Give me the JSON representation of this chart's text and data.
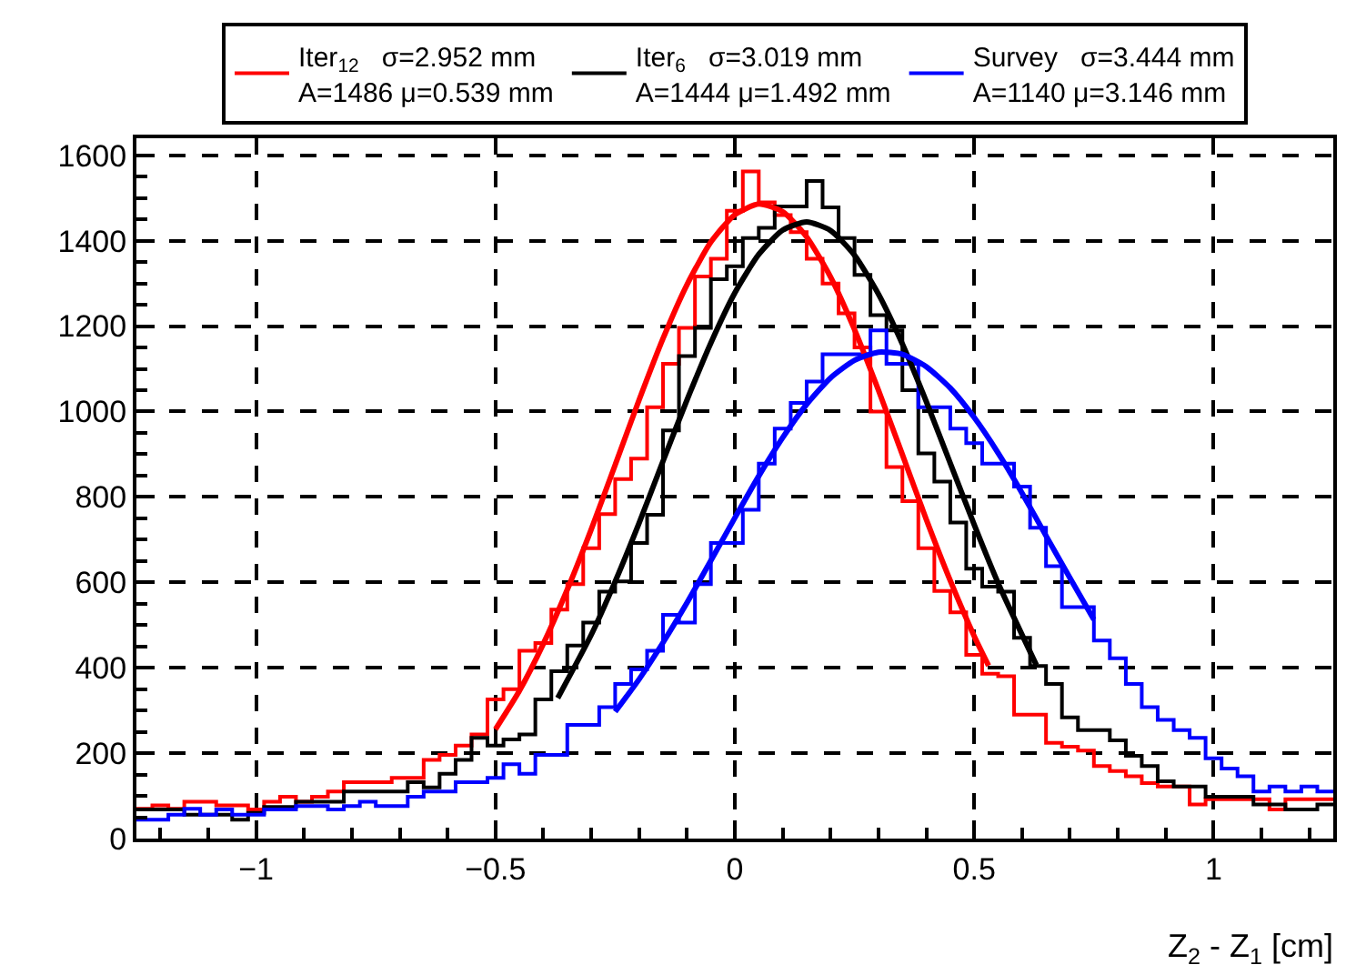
{
  "chart_data": {
    "type": "histogram",
    "xlabel": "Z$_{2}$ - Z$_{1}$ [cm]",
    "bins": [
      -1.25,
      -1.2167,
      -1.1833,
      -1.15,
      -1.1167,
      -1.0833,
      -1.05,
      -1.0167,
      -0.9833,
      -0.95,
      -0.9167,
      -0.8833,
      -0.85,
      -0.8167,
      -0.7833,
      -0.75,
      -0.7167,
      -0.6833,
      -0.65,
      -0.6167,
      -0.5833,
      -0.55,
      -0.5167,
      -0.4833,
      -0.45,
      -0.4167,
      -0.3833,
      -0.35,
      -0.3167,
      -0.2833,
      -0.25,
      -0.2167,
      -0.1833,
      -0.15,
      -0.1167,
      -0.0833,
      -0.05,
      -0.0167,
      0.0167,
      0.05,
      0.0833,
      0.1167,
      0.15,
      0.1833,
      0.2167,
      0.25,
      0.2833,
      0.3167,
      0.35,
      0.3833,
      0.4167,
      0.45,
      0.4833,
      0.5167,
      0.55,
      0.5833,
      0.6167,
      0.65,
      0.6833,
      0.7167,
      0.75,
      0.7833,
      0.8167,
      0.85,
      0.8833,
      0.9167,
      0.95,
      0.9833,
      1.0167,
      1.05,
      1.0833,
      1.1167,
      1.15,
      1.1833,
      1.2167,
      1.25
    ],
    "series": [
      {
        "name": "Iter$_{12}$   σ=2.952 mm",
        "color": "#ff0000",
        "values": [
          70,
          78,
          70,
          86,
          86,
          78,
          78,
          68,
          86,
          98,
          86,
          98,
          110,
          132,
          132,
          132,
          142,
          142,
          184,
          196,
          218,
          244,
          326,
          350,
          440,
          458,
          536,
          596,
          680,
          760,
          842,
          890,
          1010,
          1112,
          1196,
          1316,
          1358,
          1470,
          1562,
          1490,
          1460,
          1420,
          1358,
          1300,
          1230,
          1150,
          1000,
          870,
          790,
          680,
          580,
          530,
          430,
          386,
          380,
          290,
          290,
          224,
          215,
          206,
          170,
          158,
          146,
          130,
          122,
          122,
          80,
          92,
          92,
          92,
          92,
          68,
          92,
          92,
          92
        ]
      },
      {
        "name": "Iter$_{6}$   σ=3.019 mm",
        "color": "#000000",
        "values": [
          68,
          68,
          68,
          56,
          56,
          56,
          44,
          60,
          74,
          74,
          86,
          86,
          86,
          110,
          110,
          110,
          110,
          132,
          120,
          152,
          184,
          236,
          218,
          232,
          244,
          326,
          392,
          452,
          506,
          578,
          602,
          692,
          758,
          956,
          1130,
          1196,
          1310,
          1340,
          1406,
          1430,
          1480,
          1480,
          1540,
          1478,
          1406,
          1320,
          1226,
          1190,
          1050,
          902,
          836,
          740,
          632,
          590,
          578,
          470,
          404,
          362,
          284,
          254,
          254,
          230,
          194,
          170,
          134,
          122,
          122,
          98,
          98,
          98,
          80,
          80,
          68,
          68,
          80
        ]
      },
      {
        "name": "Survey   σ=3.444 mm",
        "color": "#0000ff",
        "values": [
          44,
          44,
          56,
          70,
          56,
          68,
          56,
          56,
          68,
          68,
          76,
          76,
          68,
          76,
          86,
          76,
          76,
          98,
          110,
          110,
          132,
          132,
          142,
          174,
          152,
          196,
          196,
          266,
          266,
          308,
          362,
          396,
          440,
          524,
          506,
          596,
          692,
          692,
          770,
          878,
          960,
          1020,
          1070,
          1134,
          1134,
          1134,
          1190,
          1112,
          1112,
          1010,
          1010,
          960,
          926,
          878,
          878,
          824,
          728,
          638,
          542,
          542,
          464,
          422,
          362,
          308,
          278,
          254,
          236,
          188,
          164,
          146,
          110,
          122,
          110,
          122,
          110
        ]
      },
      {
        "type": "line",
        "color": "#ff0000",
        "x": [
          -0.5,
          -0.45,
          -0.4,
          -0.35,
          -0.3,
          -0.25,
          -0.2,
          -0.15,
          -0.1,
          -0.05,
          0,
          0.05,
          0.1,
          0.15,
          0.2,
          0.25,
          0.3,
          0.35,
          0.4,
          0.45,
          0.5,
          0.53
        ],
        "values": [
          256,
          346,
          456,
          583,
          724,
          875,
          1027,
          1171,
          1297,
          1397,
          1461,
          1486,
          1468,
          1409,
          1315,
          1192,
          1050,
          899,
          747,
          604,
          474,
          405
        ]
      },
      {
        "type": "line",
        "color": "#000000",
        "x": [
          -0.37,
          -0.3,
          -0.25,
          -0.2,
          -0.15,
          -0.1,
          -0.05,
          0,
          0.05,
          0.1,
          0.15,
          0.2,
          0.25,
          0.3,
          0.35,
          0.4,
          0.45,
          0.5,
          0.55,
          0.63
        ],
        "values": [
          329,
          477,
          602,
          739,
          884,
          1027,
          1161,
          1278,
          1368,
          1425,
          1444,
          1424,
          1366,
          1275,
          1158,
          1023,
          879,
          735,
          598,
          406
        ]
      },
      {
        "type": "line",
        "color": "#0000ff",
        "x": [
          -0.25,
          -0.2,
          -0.15,
          -0.1,
          -0.05,
          0,
          0.05,
          0.1,
          0.15,
          0.2,
          0.25,
          0.3,
          0.35,
          0.4,
          0.45,
          0.5,
          0.55,
          0.6,
          0.65,
          0.7,
          0.75
        ],
        "values": [
          297,
          373,
          459,
          552,
          651,
          751,
          849,
          939,
          1017,
          1079,
          1120,
          1139,
          1134,
          1105,
          1055,
          986,
          903,
          809,
          709,
          610,
          513
        ]
      }
    ],
    "annotations": [
      "A=1486 μ=0.539 mm",
      "A=1444 μ=1.492 mm",
      "A=1140 μ=3.146 mm"
    ],
    "xlim": [
      -1.25,
      1.25
    ],
    "xticks": [
      {
        "value": -1,
        "label": "−1"
      },
      {
        "value": -0.5,
        "label": "−0.5"
      },
      0,
      0.5,
      1
    ],
    "ylim": [
      0,
      1640
    ],
    "yticks": [
      0,
      200,
      400,
      600,
      800,
      1000,
      1200,
      1400,
      1600
    ],
    "grid": true,
    "legend": "top"
  }
}
